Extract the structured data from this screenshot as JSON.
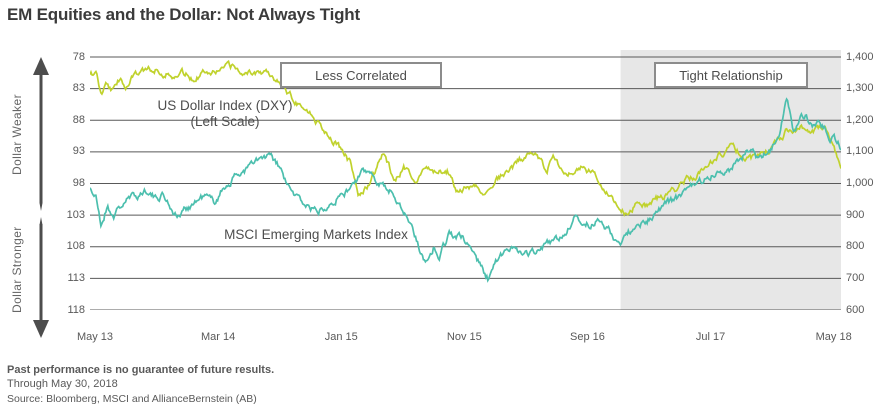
{
  "title": "EM Equities and the Dollar: Not Always Tight",
  "chart_data": {
    "type": "line",
    "x_tick_labels": [
      "May 13",
      "Mar 14",
      "Jan 15",
      "Nov 15",
      "Sep 16",
      "Jul 17",
      "May 18"
    ],
    "x_tick_months": [
      0,
      10,
      20,
      30,
      40,
      50,
      60
    ],
    "x_range_months": 61,
    "left_axis": {
      "title_weaker": "Dollar  Weaker",
      "title_stronger": "Dollar  Stronger",
      "ticks": [
        "78",
        "83",
        "88",
        "93",
        "98",
        "103",
        "108",
        "113",
        "118"
      ],
      "min": 78,
      "max": 118,
      "inverted": true
    },
    "right_axis": {
      "ticks": [
        "1,400",
        "1,300",
        "1,200",
        "1,100",
        "1,000",
        "900",
        "800",
        "700",
        "600"
      ],
      "min": 600,
      "max": 1400
    },
    "annotations": {
      "less_correlated": "Less Correlated",
      "tight_relationship": "Tight Relationship",
      "dxy_label_line1": "US Dollar Index (DXY)",
      "dxy_label_line2": "(Left Scale)",
      "msci_label": "MSCI Emerging Markets Index"
    },
    "shaded_region": {
      "start_month": 43.1,
      "end_month": 61,
      "color": "#e7e7e7"
    },
    "grid_color": "#595959",
    "series": [
      {
        "name": "US Dollar Index (DXY)",
        "axis": "left",
        "color": "#c0d22d",
        "points": [
          [
            0,
            81.2
          ],
          [
            0.5,
            80.3
          ],
          [
            0.9,
            84.2
          ],
          [
            1.3,
            82.4
          ],
          [
            1.9,
            83.4
          ],
          [
            2.5,
            81.2
          ],
          [
            3.1,
            82.9
          ],
          [
            3.7,
            80.5
          ],
          [
            4.5,
            80.2
          ],
          [
            5.5,
            79.8
          ],
          [
            6.5,
            80.8
          ],
          [
            7.5,
            80.6
          ],
          [
            8.5,
            81.3
          ],
          [
            9.5,
            79.9
          ],
          [
            10.5,
            80.1
          ],
          [
            11.5,
            79.6
          ],
          [
            12.5,
            80.5
          ],
          [
            13.5,
            80.3
          ],
          [
            14.5,
            80.1
          ],
          [
            15.5,
            82.2
          ],
          [
            16.5,
            84.5
          ],
          [
            17.5,
            86.0
          ],
          [
            18.5,
            88.3
          ],
          [
            19.5,
            90.4
          ],
          [
            20.5,
            92.9
          ],
          [
            21.2,
            94.9
          ],
          [
            21.8,
            100.2
          ],
          [
            22.5,
            98.6
          ],
          [
            23.1,
            96.4
          ],
          [
            23.8,
            93.3
          ],
          [
            24.8,
            97.7
          ],
          [
            25.5,
            95.6
          ],
          [
            26.5,
            97.3
          ],
          [
            27.3,
            95.3
          ],
          [
            28.1,
            96.3
          ],
          [
            29,
            95.9
          ],
          [
            30,
            99.6
          ],
          [
            31,
            98.3
          ],
          [
            32,
            99.4
          ],
          [
            33,
            97.1
          ],
          [
            34,
            96.1
          ],
          [
            35,
            94.3
          ],
          [
            35.8,
            92.8
          ],
          [
            36.6,
            94.6
          ],
          [
            37.1,
            95.9
          ],
          [
            37.6,
            94.0
          ],
          [
            38.3,
            96.5
          ],
          [
            39.1,
            95.7
          ],
          [
            40,
            95.4
          ],
          [
            41,
            96.9
          ],
          [
            42,
            98.9
          ],
          [
            43,
            101.6
          ],
          [
            43.6,
            102.8
          ],
          [
            44.4,
            100.9
          ],
          [
            45.2,
            101.6
          ],
          [
            46,
            100.4
          ],
          [
            46.8,
            100.0
          ],
          [
            47.6,
            98.9
          ],
          [
            48.4,
            97.4
          ],
          [
            49.3,
            96.7
          ],
          [
            50.2,
            94.9
          ],
          [
            51.2,
            93.4
          ],
          [
            52.2,
            92.1
          ],
          [
            53,
            93.3
          ],
          [
            53.7,
            94.3
          ],
          [
            54.4,
            93.2
          ],
          [
            55.3,
            92.5
          ],
          [
            56.2,
            90.6
          ],
          [
            56.8,
            89.3
          ],
          [
            57.4,
            89.9
          ],
          [
            58.1,
            89.0
          ],
          [
            58.7,
            89.8
          ],
          [
            59.2,
            89.4
          ],
          [
            59.8,
            90.0
          ],
          [
            60.3,
            91.9
          ],
          [
            60.7,
            93.8
          ],
          [
            61,
            95.0
          ]
        ]
      },
      {
        "name": "MSCI Emerging Markets Index",
        "axis": "right",
        "color": "#4cbfae",
        "points": [
          [
            0,
            988
          ],
          [
            0.5,
            952
          ],
          [
            0.9,
            866
          ],
          [
            1.4,
            928
          ],
          [
            1.9,
            898
          ],
          [
            2.9,
            946
          ],
          [
            3.9,
            963
          ],
          [
            4.7,
            984
          ],
          [
            5.3,
            950
          ],
          [
            5.9,
            967
          ],
          [
            7.1,
            894
          ],
          [
            8.1,
            930
          ],
          [
            9.3,
            961
          ],
          [
            10.1,
            941
          ],
          [
            11,
            994
          ],
          [
            12.2,
            1034
          ],
          [
            13.6,
            1071
          ],
          [
            14.6,
            1084
          ],
          [
            15.4,
            1049
          ],
          [
            16.2,
            979
          ],
          [
            17.1,
            946
          ],
          [
            18.5,
            909
          ],
          [
            19.4,
            944
          ],
          [
            20.7,
            969
          ],
          [
            22.3,
            1037
          ],
          [
            23,
            1024
          ],
          [
            23.9,
            996
          ],
          [
            25,
            951
          ],
          [
            26.1,
            868
          ],
          [
            27.2,
            752
          ],
          [
            27.9,
            799
          ],
          [
            28.4,
            772
          ],
          [
            29.2,
            844
          ],
          [
            30.2,
            826
          ],
          [
            31.1,
            789
          ],
          [
            31.9,
            725
          ],
          [
            32.3,
            698
          ],
          [
            32.9,
            749
          ],
          [
            34.5,
            807
          ],
          [
            35.6,
            773
          ],
          [
            36.9,
            802
          ],
          [
            38.3,
            831
          ],
          [
            39.4,
            888
          ],
          [
            40.5,
            872
          ],
          [
            41.6,
            882
          ],
          [
            42.6,
            824
          ],
          [
            43.2,
            818
          ],
          [
            44.1,
            857
          ],
          [
            45.1,
            875
          ],
          [
            45.7,
            899
          ],
          [
            46.7,
            936
          ],
          [
            47.9,
            956
          ],
          [
            49.1,
            994
          ],
          [
            50.8,
            1036
          ],
          [
            52,
            1051
          ],
          [
            53.4,
            1099
          ],
          [
            54.2,
            1081
          ],
          [
            55.2,
            1107
          ],
          [
            56,
            1153
          ],
          [
            56.6,
            1271
          ],
          [
            57.1,
            1166
          ],
          [
            57.7,
            1202
          ],
          [
            58.1,
            1211
          ],
          [
            58.6,
            1179
          ],
          [
            59.3,
            1197
          ],
          [
            60,
            1156
          ],
          [
            60.6,
            1134
          ],
          [
            61,
            1113
          ]
        ]
      }
    ]
  },
  "footer": {
    "disclaimer": "Past performance is no guarantee of future results.",
    "through": "Through May 30, 2018",
    "source": "Source: Bloomberg, MSCI and AllianceBernstein (AB)"
  }
}
